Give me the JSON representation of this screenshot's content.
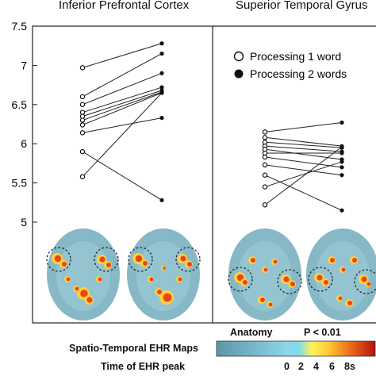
{
  "chart_data": [
    {
      "type": "line",
      "title": "Inferior Prefrontal Cortex",
      "ylim": [
        5.0,
        7.5
      ],
      "y_ticks": [
        "7.5",
        "7",
        "6.5",
        "6",
        "5.5",
        "5"
      ],
      "x_conditions": [
        "Processing 1 word",
        "Processing 2 words"
      ],
      "pairs": [
        [
          6.97,
          7.28
        ],
        [
          6.6,
          7.15
        ],
        [
          6.5,
          6.9
        ],
        [
          6.4,
          6.72
        ],
        [
          6.35,
          6.68
        ],
        [
          6.3,
          6.66
        ],
        [
          6.24,
          6.65
        ],
        [
          6.14,
          6.33
        ],
        [
          5.9,
          5.28
        ],
        [
          5.58,
          6.65
        ]
      ]
    },
    {
      "type": "line",
      "title": "Superior Temporal Gyrus",
      "ylim": [
        5.0,
        7.5
      ],
      "x_conditions": [
        "Processing 1 word",
        "Processing 2 words"
      ],
      "legend": {
        "position": "top",
        "entries": [
          "Processing 1 word",
          "Processing 2 words"
        ]
      },
      "pairs": [
        [
          6.15,
          6.27
        ],
        [
          6.08,
          5.97
        ],
        [
          6.02,
          5.95
        ],
        [
          5.97,
          5.9
        ],
        [
          5.93,
          5.8
        ],
        [
          5.88,
          5.88
        ],
        [
          5.83,
          5.7
        ],
        [
          5.73,
          5.6
        ],
        [
          5.6,
          5.15
        ],
        [
          5.45,
          5.77
        ],
        [
          5.22,
          5.96
        ]
      ]
    }
  ],
  "colorbar": {
    "anatomy_label": "Anatomy",
    "p_label": "P < 0.01",
    "maps_label": "Spatio-Temporal EHR Maps",
    "peak_label": "Time of EHR peak",
    "ticks": [
      "0",
      "2",
      "4",
      "6",
      "8s"
    ],
    "colors": {
      "anatomy": "#6fa8b8",
      "low": "#7fdcee",
      "mid": "#ffe84a",
      "high": "#c8180f"
    }
  },
  "brain_colors": {
    "tissue": "#86b8c6",
    "tissue_light": "#9ecbd6",
    "activation_hot": "#e8451a",
    "activation_warm": "#ffd23a"
  }
}
